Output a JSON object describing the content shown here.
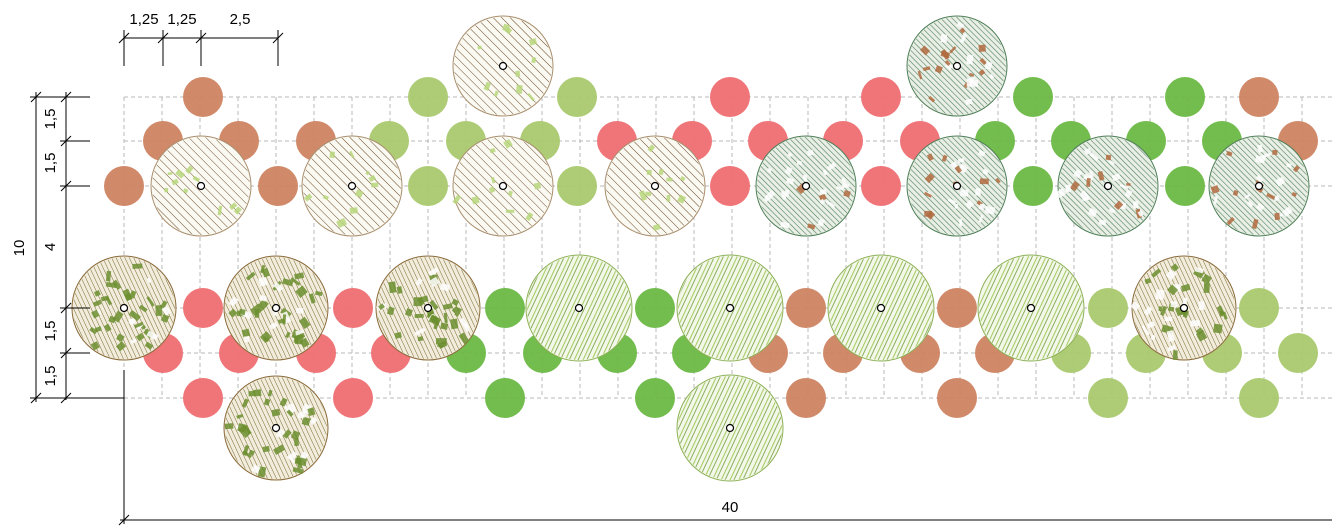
{
  "dimensions": {
    "top": [
      "1,25",
      "1,25",
      "2,5"
    ],
    "left_total": "10",
    "left_parts": [
      "1,5",
      "1,5",
      "4",
      "1,5",
      "1,5"
    ],
    "bottom_total": "40"
  },
  "colors": {
    "shrub_copper": "#cd8462",
    "shrub_red": "#ee6e72",
    "shrub_light_green": "#a9c96e",
    "shrub_green": "#6cb845",
    "tree_line_a": "#6e4a2a",
    "tree_line_b": "#5d8a4a",
    "tree_texture_olive": "#6b8e2e",
    "tree_texture_dark": "#4f7f58",
    "tree_texture_rust": "#b06a3e",
    "tree_stripe_light": "#b7d67a",
    "grid": "#b8b8b8"
  }
}
